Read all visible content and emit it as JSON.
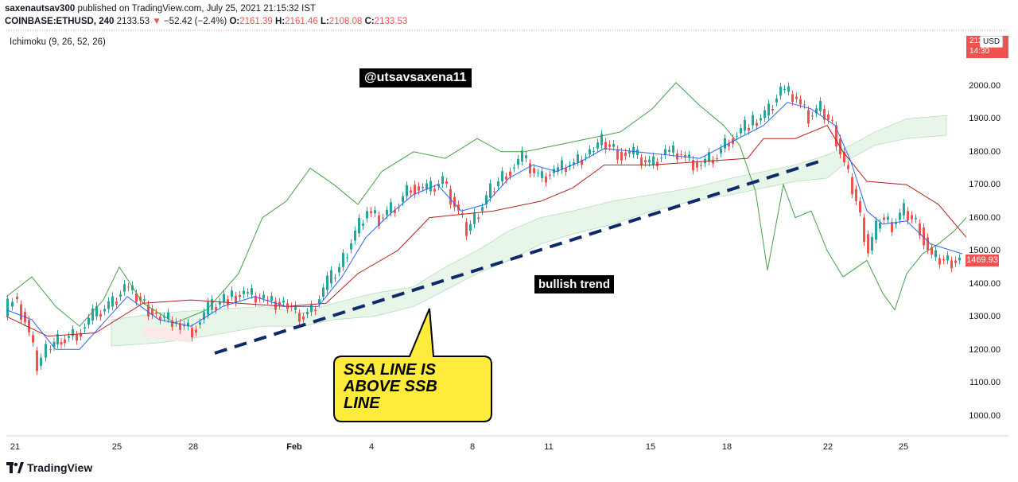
{
  "header": {
    "line1_author": "saxenautsav300",
    "line1_rest": "published on TradingView.com, July 25, 2021 21:15:32 IST",
    "symbol": "COINBASE:ETHUSD, 240",
    "last": "2133.53",
    "change": "−52.42 (−2.4%)",
    "o_label": "O:",
    "o_val": "2161.39",
    "h_label": "H:",
    "h_val": "2161.46",
    "l_label": "L:",
    "l_val": "2108.08",
    "c_label": "C:",
    "c_val": "2133.53"
  },
  "indicator": {
    "label": "Ichimoku (9, 26, 52, 26)"
  },
  "annotations": {
    "watermark": "@utsavsaxena11",
    "trend": "bullish trend",
    "callout_lines": [
      "SSA LINE IS",
      "ABOVE SSB",
      "LINE"
    ]
  },
  "axis": {
    "y_ticks": [
      "2000.00",
      "1900.00",
      "1800.00",
      "1700.00",
      "1600.00",
      "1500.00",
      "1400.00",
      "1300.00",
      "1200.00",
      "1100.00",
      "1000.00"
    ],
    "x_ticks": [
      "21",
      "25",
      "28",
      "Feb",
      "4",
      "8",
      "11",
      "15",
      "18",
      "22",
      "25"
    ],
    "price_badge": "1469.93",
    "top_badge_line1": "2133.53",
    "top_badge_line2": "14:30",
    "currency": "USD"
  },
  "brand": {
    "name": "TradingView"
  },
  "colors": {
    "up": "#26a69a",
    "down": "#ef5350",
    "tenkan": "#2962ff",
    "kijun": "#b71c1c",
    "chikou": "#43a047",
    "cloud_bull": "#e8f5e9",
    "cloud_bear": "#fce8e6",
    "trend_line": "#0d2a6b",
    "callout": "#ffeb3b"
  }
}
